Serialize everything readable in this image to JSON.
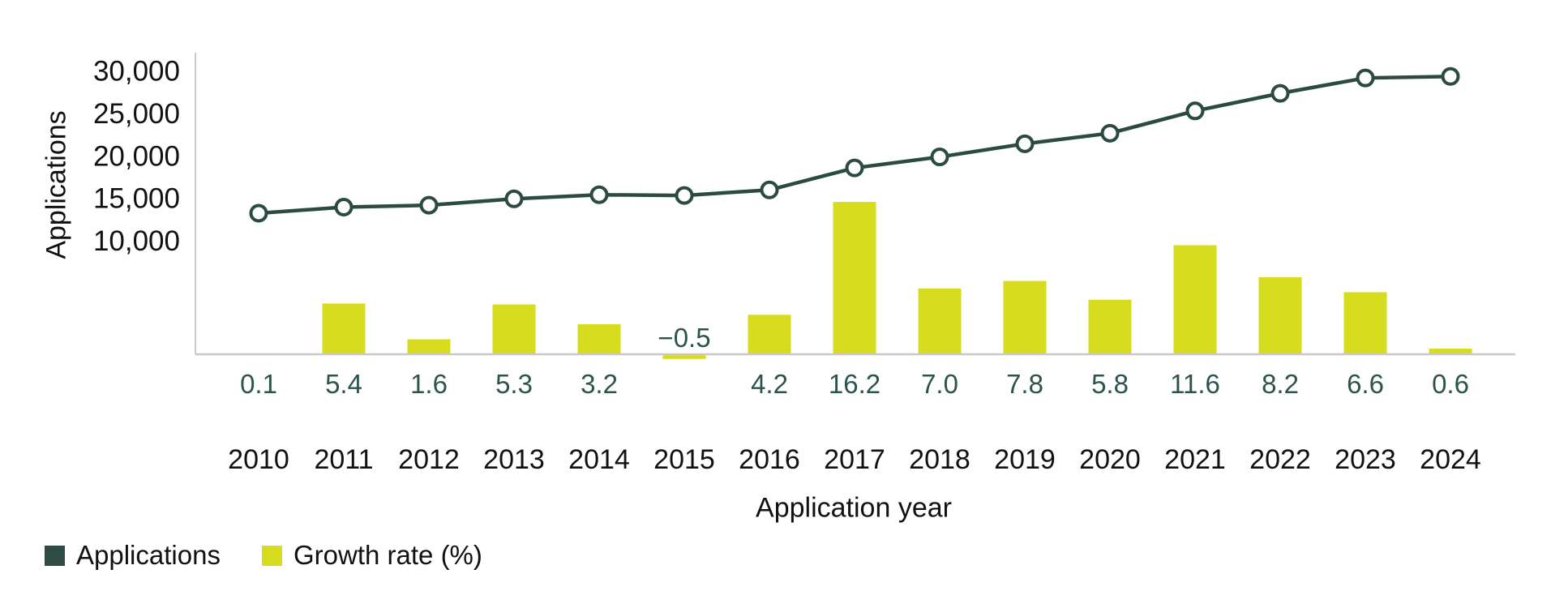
{
  "chart_data": {
    "type": "combo (line + bar)",
    "title": "",
    "categories": [
      "2010",
      "2011",
      "2012",
      "2013",
      "2014",
      "2015",
      "2016",
      "2017",
      "2018",
      "2019",
      "2020",
      "2021",
      "2022",
      "2023",
      "2024"
    ],
    "series": [
      {
        "name": "Applications",
        "type": "line",
        "color": "#2b4a41",
        "marker": "open-circle",
        "values": [
          13250,
          13960,
          14190,
          14940,
          15420,
          15340,
          15990,
          18580,
          19880,
          21430,
          22670,
          25300,
          27370,
          29180,
          29360
        ]
      },
      {
        "name": "Growth rate (%)",
        "type": "bar",
        "color": "#d7dc1f",
        "values": [
          0.1,
          5.4,
          1.6,
          5.3,
          3.2,
          -0.5,
          4.2,
          16.2,
          7.0,
          7.8,
          5.8,
          11.6,
          8.2,
          6.6,
          0.6
        ]
      }
    ],
    "growth_labels": [
      "0.1",
      "5.4",
      "1.6",
      "5.3",
      "3.2",
      "−0.5",
      "4.2",
      "16.2",
      "7.0",
      "7.8",
      "5.8",
      "11.6",
      "8.2",
      "6.6",
      "0.6"
    ],
    "y_axis": {
      "label": "Applications",
      "ticks": [
        "10,000",
        "15,000",
        "20,000",
        "25,000",
        "30,000"
      ],
      "tick_values": [
        10000,
        15000,
        20000,
        25000,
        30000
      ],
      "grid": false
    },
    "x_axis": {
      "label": "Application year"
    },
    "legend": [
      {
        "label": "Applications",
        "color": "#2e4c44"
      },
      {
        "label": "Growth rate (%)",
        "color": "#d7dc1f"
      }
    ],
    "colors": {
      "line": "#2b4a41",
      "bar": "#d7dc1f",
      "growth_label_text": "#2c544b",
      "axis_text": "#111111",
      "axis_line": "#c9c9c9",
      "background": "#ffffff"
    },
    "legend_position": "bottom-left"
  }
}
